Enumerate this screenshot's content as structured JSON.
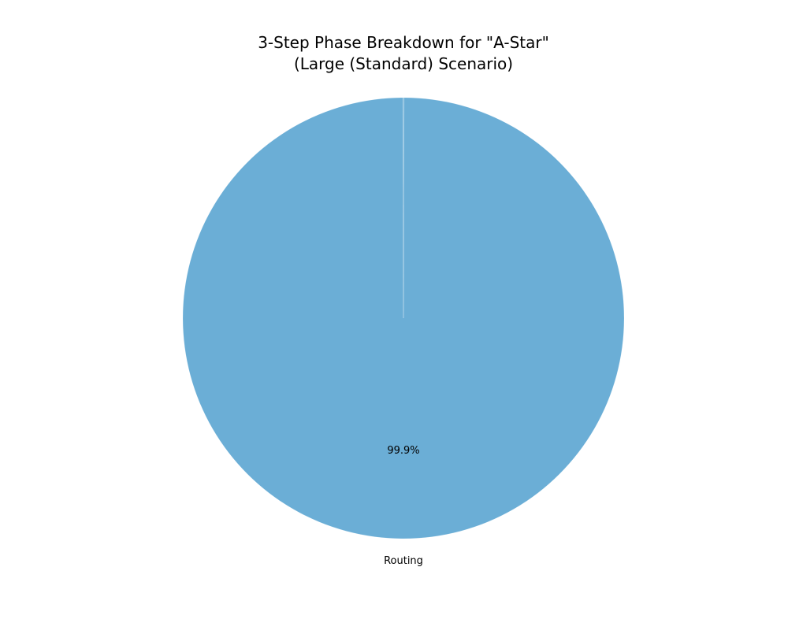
{
  "chart_data": {
    "type": "pie",
    "title": "3-Step Phase Breakdown for \"A-Star\"",
    "subtitle": "(Large (Standard) Scenario)",
    "slices": [
      {
        "label": "",
        "value": 0.05,
        "pct_label": "",
        "color": "#6baed6"
      },
      {
        "label": "Routing",
        "value": 99.9,
        "pct_label": "99.9%",
        "color": "#6baed6"
      },
      {
        "label": "",
        "value": 0.05,
        "pct_label": "",
        "color": "#6baed6"
      }
    ],
    "start_angle_deg": 90,
    "direction": "counterclockwise",
    "edge_color": "#ffffff"
  }
}
